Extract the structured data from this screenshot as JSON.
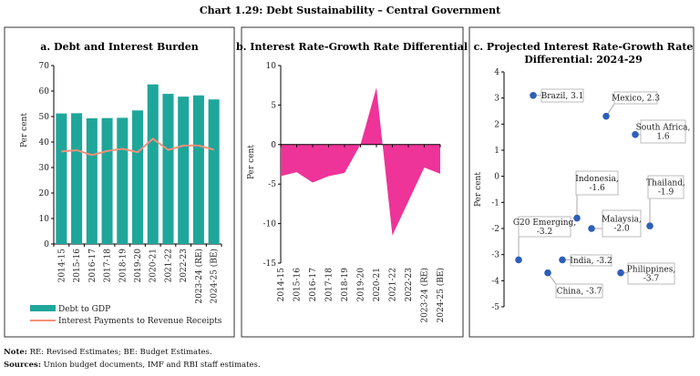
{
  "main_title": "Chart 1.29: Debt Sustainability – Central Government",
  "colors": {
    "bar": "#1fa69b",
    "line": "#f4907a",
    "area": "#ee3399",
    "point": "#2e5fb8"
  },
  "chart_data": [
    {
      "type": "bar",
      "title": "a. Debt and Interest Burden",
      "ylabel": "Per cent",
      "ylim": [
        0,
        70
      ],
      "yticks": [
        "0",
        "10",
        "20",
        "30",
        "40",
        "50",
        "60",
        "70"
      ],
      "categories": [
        "2014-15",
        "2015-16",
        "2016-17",
        "2017-18",
        "2018-19",
        "2019-20",
        "2020-21",
        "2021-22",
        "2022-23",
        "2023-24 (RE)",
        "2024-25 (BE)"
      ],
      "series": [
        {
          "name": "Debt to GDP",
          "type": "bar",
          "values": [
            51.2,
            51.3,
            49.3,
            49.4,
            49.5,
            52.4,
            62.6,
            58.9,
            57.8,
            58.3,
            56.7
          ]
        },
        {
          "name": "Interest Payments to Revenue Receipts",
          "type": "line",
          "values": [
            36.3,
            36.8,
            34.9,
            36.5,
            37.3,
            36.0,
            41.3,
            36.9,
            38.6,
            38.6,
            37.0
          ]
        }
      ],
      "legend": "bottom"
    },
    {
      "type": "area",
      "title": "b. Interest Rate-Growth Rate Differential",
      "ylabel": "Per cent",
      "ylim": [
        -15,
        10
      ],
      "yticks": [
        "-15",
        "-10",
        "-5",
        "0",
        "5",
        "10"
      ],
      "categories": [
        "2014-15",
        "2015-16",
        "2016-17",
        "2017-18",
        "2018-19",
        "2019-20",
        "2020-21",
        "2021-22",
        "2022-23",
        "2023-24 (RE)",
        "2024-25 (BE)"
      ],
      "values": [
        -4.0,
        -3.5,
        -4.8,
        -4.0,
        -3.6,
        0.0,
        7.2,
        -11.5,
        -7.2,
        -2.9,
        -3.7
      ]
    },
    {
      "type": "scatter",
      "title": "c. Projected Interest Rate-Growth Rate",
      "title_line2": "Differential: 2024-29",
      "ylabel": "Per cent",
      "ylim": [
        -5,
        4
      ],
      "yticks": [
        "-5",
        "-4",
        "-3",
        "-2",
        "-1",
        "0",
        "1",
        "2",
        "3",
        "4"
      ],
      "points": [
        {
          "label": "G20 Emerging,",
          "label2": "-3.2",
          "value": -3.2
        },
        {
          "label": "Brazil, 3.1",
          "value": 3.1
        },
        {
          "label": "China, -3.7",
          "value": -3.7
        },
        {
          "label": "India, -3.2",
          "value": -3.2
        },
        {
          "label": "Indonesia,",
          "label2": "-1.6",
          "value": -1.6
        },
        {
          "label": "Malaysia,",
          "label2": "-2.0",
          "value": -2.0
        },
        {
          "label": "Mexico, 2.3",
          "value": 2.3
        },
        {
          "label": "Philippines,",
          "label2": "-3.7",
          "value": -3.7
        },
        {
          "label": "South Africa,",
          "label2": "1.6",
          "value": 1.6
        },
        {
          "label": "Thailand,",
          "label2": "-1.9",
          "value": -1.9
        }
      ]
    }
  ],
  "notes": {
    "note_label": "Note:",
    "note_text": " RE: Revised Estimates; BE: Budget Estimates.",
    "sources_label": "Sources:",
    "sources_text": " Union budget documents, IMF and RBI staff estimates."
  }
}
